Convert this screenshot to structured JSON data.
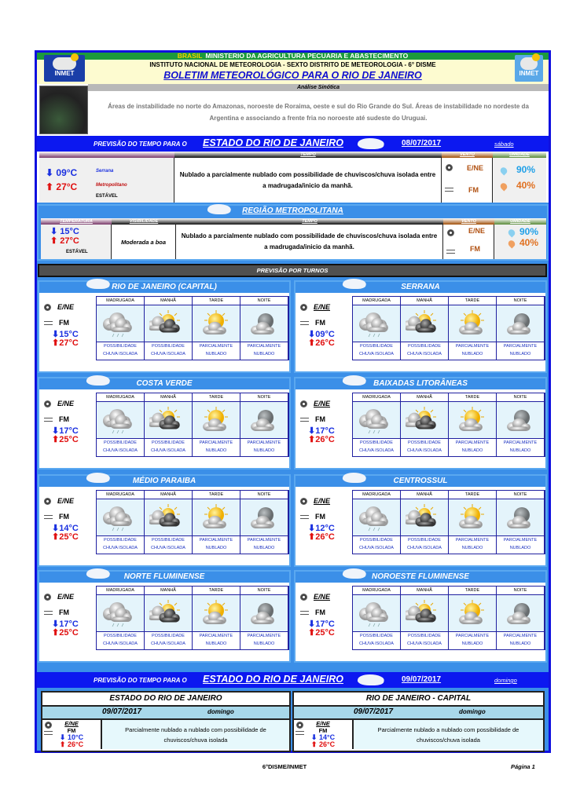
{
  "header": {
    "brasil": "BRASIL",
    "ministry": "MINISTERIO DA AGRICULTURA PECUARIA E ABASTECIMENTO",
    "institute": "INSTITUTO NACIONAL DE METEOROLOGIA - SEXTO DISTRITO DE METEOROLOGIA - 6° DISME",
    "title": "BOLETIM METEOROLÓGICO PARA O RIO DE JANEIRO",
    "logo": "INMET"
  },
  "synoptic": {
    "label": "Análise Sinótica",
    "text": "Áreas de instabilidade no norte do Amazonas, noroeste de Roraima, oeste e sul do Rio Grande do Sul. Áreas de instabilidade no nordeste da Argentina e associando a frente fria no noroeste até sudeste do Uruguai."
  },
  "day1": {
    "prefix": "PREVISÃO DO TEMPO PARA O",
    "state": "ESTADO DO RIO DE JANEIRO",
    "date": "08/07/2017",
    "weekday": "sábado",
    "headers": {
      "tempo": "TEMPO",
      "vento": "VENTO",
      "umidade": "UMIDADE"
    },
    "min": "09°C",
    "min_label": "Serrana",
    "max": "27°C",
    "max_label": "Metropolitano",
    "trend": "ESTÁVEL",
    "description": "Nublado a parcialmente nublado com possibilidade de chuviscos/chuva isolada entre a madrugada/inicio da manhã.",
    "wind_dir": "E/NE",
    "wind_speed": "FM",
    "humidity_max": "90%",
    "humidity_min": "40%"
  },
  "metro": {
    "title": "REGIÃO METROPOLITANA",
    "headers": {
      "temperatura": "TEMPERATURA",
      "visibilidade": "VISIBILIDADE",
      "tempo": "TEMPO",
      "vento": "VENTO",
      "umidade": "UMIDADE"
    },
    "min": "15°C",
    "max": "27°C",
    "trend": "ESTÁVEL",
    "visibility": "Moderada a boa",
    "description": "Nublado a parcialmente nublado com possibilidade de chuviscos/chuva isolada entre a madrugada/inicio da manhã.",
    "wind_dir": "E/NE",
    "wind_speed": "FM",
    "humidity_max": "90%",
    "humidity_min": "40%"
  },
  "turnos": {
    "title": "PREVISÃO POR TURNOS",
    "periods": [
      "MADRUGADA",
      "MANHÃ",
      "TARDE",
      "NOITE"
    ],
    "period_icons": [
      "cloud-rain-icon",
      "sun-cloud-storm-icon",
      "sun-cloud-icon",
      "moon-cloud-icon"
    ],
    "conditions": [
      [
        "POSSIBILIDADE",
        "CHUVA ISOLADA"
      ],
      [
        "POSSIBILIDADE",
        "CHUVA ISOLADA"
      ],
      [
        "PARCIALMENTE",
        "NUBLADO"
      ],
      [
        "PARCIALMENTE",
        "NUBLADO"
      ]
    ],
    "regions": [
      {
        "name": "RIO DE JANEIRO (CAPITAL)",
        "wind_dir": "E/NE",
        "wind_speed": "FM",
        "min": "15°C",
        "max": "27°C"
      },
      {
        "name": "SERRANA",
        "wind_dir": "E/NE",
        "wind_speed": "FM",
        "min": "09°C",
        "max": "26°C"
      },
      {
        "name": "COSTA VERDE",
        "wind_dir": "E/NE",
        "wind_speed": "FM",
        "min": "17°C",
        "max": "25°C"
      },
      {
        "name": "BAIXADAS LITORÂNEAS",
        "wind_dir": "E/NE",
        "wind_speed": "FM",
        "min": "17°C",
        "max": "26°C"
      },
      {
        "name": "MÉDIO PARAIBA",
        "wind_dir": "E/NE",
        "wind_speed": "FM",
        "min": "14°C",
        "max": "25°C"
      },
      {
        "name": "CENTROSSUL",
        "wind_dir": "E/NE",
        "wind_speed": "FM",
        "min": "12°C",
        "max": "26°C"
      },
      {
        "name": "NORTE FLUMINENSE",
        "wind_dir": "E/NE",
        "wind_speed": "FM",
        "min": "17°C",
        "max": "25°C"
      },
      {
        "name": "NOROESTE FLUMINENSE",
        "wind_dir": "E/NE",
        "wind_speed": "FM",
        "min": "17°C",
        "max": "25°C"
      }
    ]
  },
  "day2": {
    "prefix": "PREVISÃO DO TEMPO PARA O",
    "state": "ESTADO DO RIO DE JANEIRO",
    "date": "09/07/2017",
    "weekday": "domingo",
    "tables": [
      {
        "title": "ESTADO DO RIO DE JANEIRO",
        "date": "09/07/2017",
        "weekday": "domingo",
        "wind_dir": "E/NE",
        "wind_speed": "FM",
        "min": "10°C",
        "max": "26°C",
        "description": "Parcialmente nublado a nublado com possibilidade de chuviscos/chuva isolada"
      },
      {
        "title": "RIO DE JANEIRO - CAPITAL",
        "date": "09/07/2017",
        "weekday": "domingo",
        "wind_dir": "E/NE",
        "wind_speed": "FM",
        "min": "14°C",
        "max": "26°C",
        "description": "Parcialmente nublado a nublado com possibilidade de chuviscos/chuva isolada"
      }
    ]
  },
  "footer": {
    "center": "6°DISME/INMET",
    "page": "Página 1"
  },
  "colors": {
    "frame": "#1010e0",
    "bar": "#0c18f0",
    "panel": "#3b8fe8",
    "min": "#1a30e0",
    "max": "#e01010"
  }
}
